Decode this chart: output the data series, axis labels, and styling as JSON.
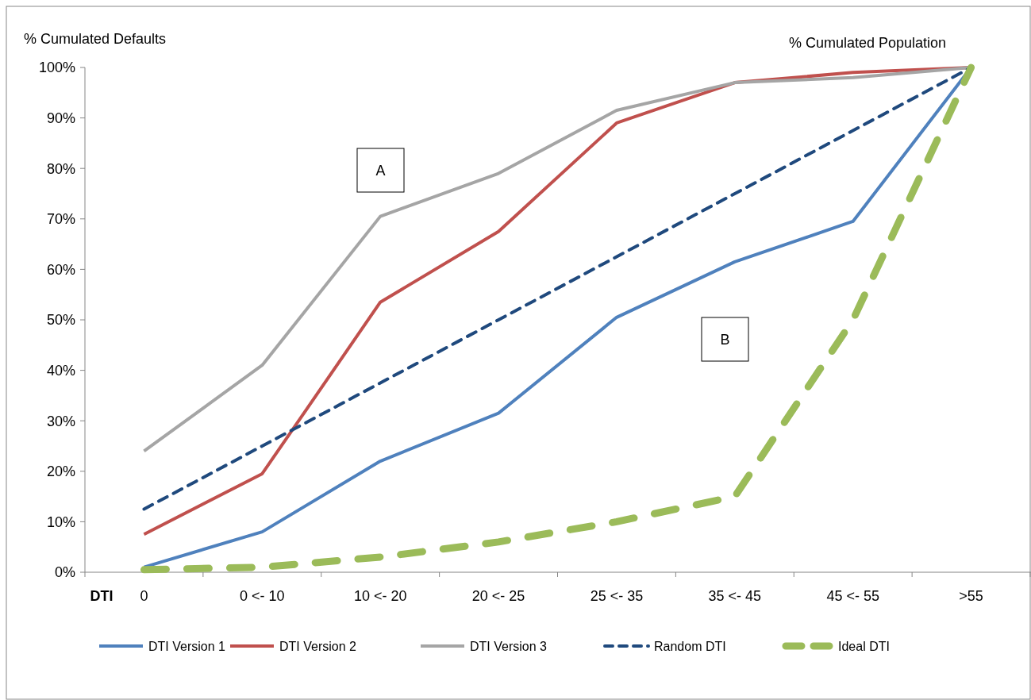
{
  "chart_data": {
    "type": "line",
    "ylabel": "% Cumulated Defaults",
    "xlabel": "DTI",
    "annotations": [
      "% Cumulated Population",
      "A",
      "B"
    ],
    "categories": [
      "0",
      "0 <- 10",
      "10 <- 20",
      "20 <- 25",
      "25 <- 35",
      "35 <- 45",
      "45 <- 55",
      ">55"
    ],
    "ylim": [
      0,
      100
    ],
    "yticks": [
      {
        "value": 0,
        "label": "0%"
      },
      {
        "value": 10,
        "label": "10%"
      },
      {
        "value": 20,
        "label": "20%"
      },
      {
        "value": 30,
        "label": "30%"
      },
      {
        "value": 40,
        "label": "40%"
      },
      {
        "value": 50,
        "label": "50%"
      },
      {
        "value": 60,
        "label": "60%"
      },
      {
        "value": 70,
        "label": "70%"
      },
      {
        "value": 80,
        "label": "80%"
      },
      {
        "value": 90,
        "label": "90%"
      },
      {
        "value": 100,
        "label": "100%"
      }
    ],
    "grid": false,
    "legend": "bottom",
    "marker": "none",
    "series": [
      {
        "name": "DTI Version 1",
        "color": "#4f81bd",
        "line_style": "solid",
        "values": [
          1,
          8,
          22,
          31.5,
          50.5,
          61.5,
          69.5,
          100
        ]
      },
      {
        "name": "DTI Version 2",
        "color": "#c0504d",
        "line_style": "solid",
        "values": [
          7.5,
          19.5,
          53.5,
          67.5,
          89,
          97,
          99,
          100
        ]
      },
      {
        "name": "DTI Version 3",
        "color": "#a5a5a5",
        "line_style": "solid",
        "values": [
          24,
          41,
          70.5,
          79,
          91.5,
          97,
          98,
          100
        ]
      },
      {
        "name": "Random DTI",
        "color": "#1f497d",
        "line_style": "dashed",
        "values": [
          12.5,
          25,
          37.5,
          50,
          62.5,
          75,
          87.5,
          100
        ]
      },
      {
        "name": "Ideal DTI",
        "color": "#9bbb59",
        "line_style": "dashed",
        "values": [
          0.5,
          1,
          3,
          6,
          10,
          15,
          50,
          100
        ]
      }
    ]
  }
}
